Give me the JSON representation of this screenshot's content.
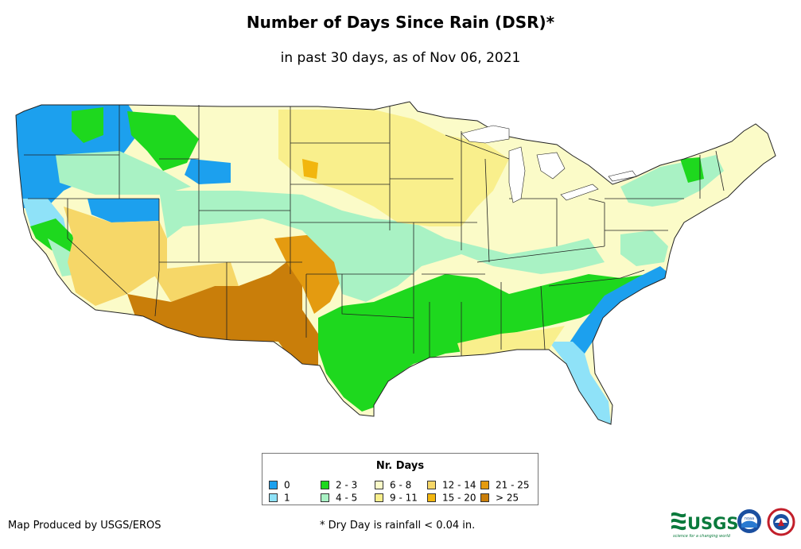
{
  "title": "Number of Days Since Rain (DSR)*",
  "subtitle": "in past 30 days, as of Nov 06, 2021",
  "legend": {
    "title": "Nr. Days",
    "items": [
      {
        "label": "0",
        "color": "#1ca0ee"
      },
      {
        "label": "1",
        "color": "#8fe2f8"
      },
      {
        "label": "2 - 3",
        "color": "#1ed81e"
      },
      {
        "label": "4 - 5",
        "color": "#a9f2c4"
      },
      {
        "label": "6 - 8",
        "color": "#fbfbc8"
      },
      {
        "label": "9 - 11",
        "color": "#f9ef8c"
      },
      {
        "label": "12 - 14",
        "color": "#f6d768"
      },
      {
        "label": "15 - 20",
        "color": "#f2b60e"
      },
      {
        "label": "21 - 25",
        "color": "#e49b10"
      },
      {
        "label": "> 25",
        "color": "#c97e0a"
      }
    ]
  },
  "footer": {
    "credit": "Map Produced by USGS/EROS",
    "note": "* Dry Day is rainfall < 0.04 in."
  },
  "logos": {
    "usgs_text": "USGS",
    "usgs_tagline": "science for a changing world",
    "noaa_text": "noaa"
  }
}
